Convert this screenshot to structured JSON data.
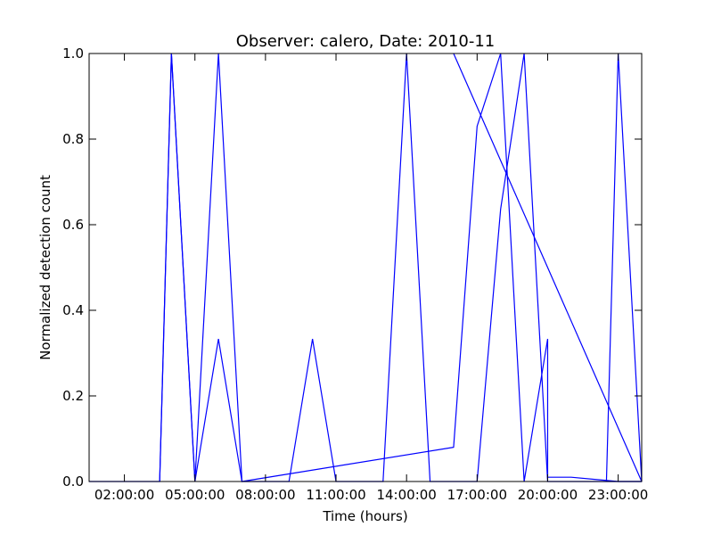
{
  "chart_data": {
    "type": "line",
    "title": "Observer: calero, Date: 2010-11",
    "xlabel": "Time (hours)",
    "ylabel": "Normalized detection count",
    "xlim": [
      "00:30:00",
      "24:00:00"
    ],
    "ylim": [
      0,
      1.0
    ],
    "x_ticks": [
      "02:00:00",
      "05:00:00",
      "08:00:00",
      "11:00:00",
      "14:00:00",
      "17:00:00",
      "20:00:00",
      "23:00:00"
    ],
    "y_ticks": [
      "0.0",
      "0.2",
      "0.4",
      "0.6",
      "0.8",
      "1.0"
    ],
    "grid": false,
    "line_color": "#0000ff",
    "series": [
      {
        "x": [
          "00:30:00",
          "01:30:00",
          "02:30:00",
          "03:30:00",
          "04:00:00",
          "05:00:00",
          "06:00:00",
          "07:00:00",
          "08:00:00",
          "09:00:00",
          "10:00:00",
          "11:00:00",
          "12:00:00",
          "13:00:00",
          "14:00:00",
          "15:00:00",
          "16:00:00",
          "17:00:00",
          "18:00:00",
          "19:00:00",
          "20:00:00",
          "21:00:00",
          "22:00:00",
          "23:00:00",
          "24:00:00"
        ],
        "y": [
          0,
          0,
          0,
          0,
          1.0,
          0,
          0.333,
          0,
          0,
          0,
          0.333,
          0,
          0,
          0,
          1.0,
          0,
          0,
          0,
          0.636,
          1.0,
          0,
          0,
          0,
          0,
          0
        ]
      },
      {
        "x": [
          "03:30:00",
          "04:00:00",
          "05:00:00",
          "06:00:00",
          "07:00:00",
          "16:00:00",
          "17:00:00",
          "18:00:00",
          "19:00:00",
          "20:00:00",
          "20:00:00",
          "21:00:00",
          "22:00:00",
          "23:00:00",
          "24:00:00"
        ],
        "y": [
          0,
          1.0,
          0,
          1.0,
          0,
          0.08,
          0.83,
          1.0,
          0,
          0.333,
          0.01,
          0.01,
          0.005,
          0,
          0
        ]
      },
      {
        "x": [
          "16:00:00",
          "24:00:00",
          "23:00:00",
          "22:30:00"
        ],
        "y": [
          1.0,
          0,
          1.0,
          0
        ]
      }
    ]
  }
}
